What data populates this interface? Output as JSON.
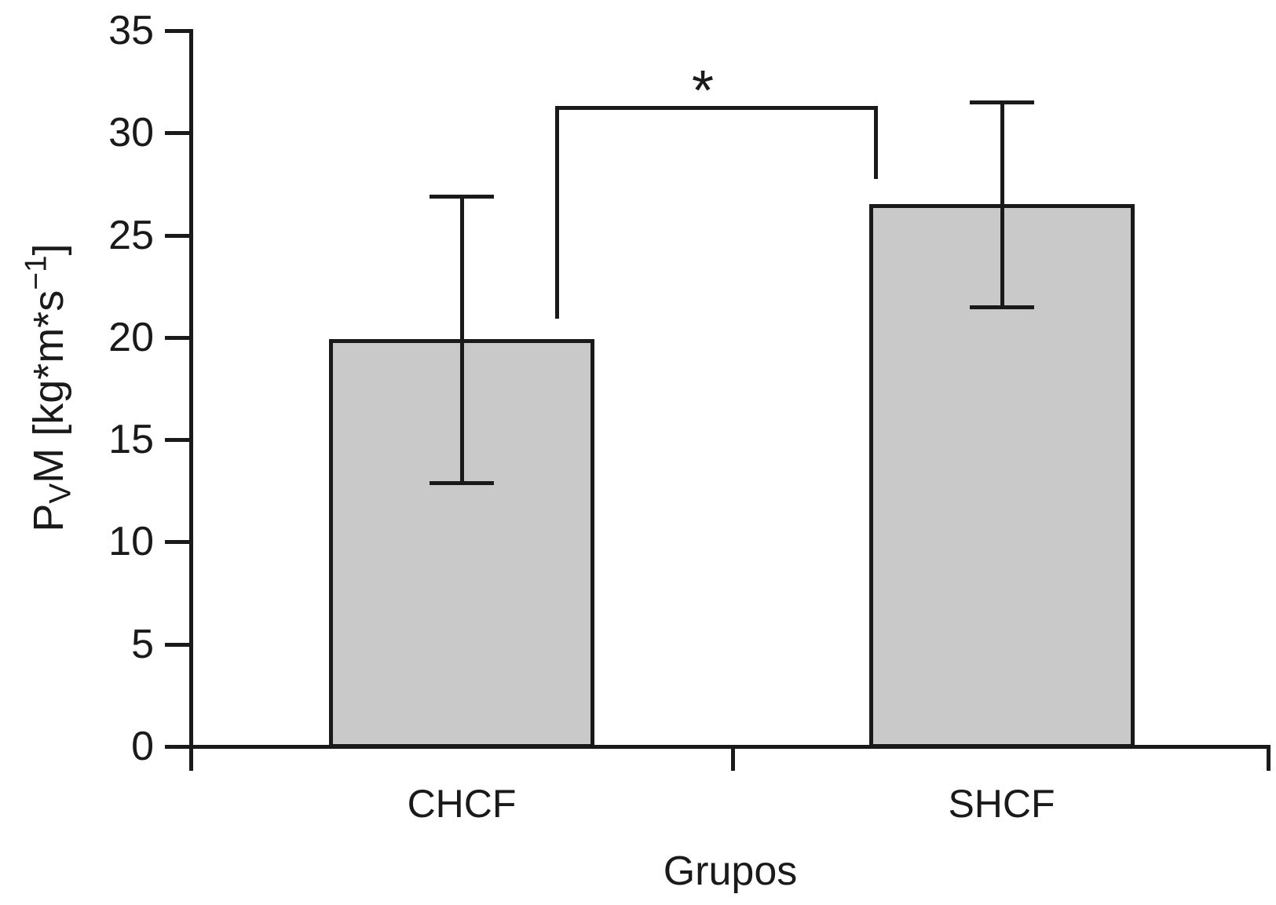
{
  "chart_data": {
    "type": "bar",
    "title": "",
    "xlabel": "Grupos",
    "ylabel": {
      "pre": "P",
      "sub": "V",
      "mid": "M [kg*m*s",
      "sup": "−1",
      "post": "]",
      "plain": "PVM [kg*m*s−1]"
    },
    "categories": [
      "CHCF",
      "SHCF"
    ],
    "values": [
      19.9,
      26.5
    ],
    "errors": [
      7.0,
      5.0
    ],
    "error_tops": [
      26.9,
      31.5
    ],
    "error_bottoms": [
      12.9,
      21.5
    ],
    "ylim": [
      0,
      35
    ],
    "yticks": [
      0,
      5,
      10,
      15,
      20,
      25,
      30,
      35
    ],
    "grid": false,
    "legend": null,
    "significance": {
      "label": "*",
      "between": [
        "CHCF",
        "SHCF"
      ],
      "bar_value": 31.25,
      "left_end_value": 20.9,
      "right_end_value": 27.75
    }
  },
  "colors": {
    "background": "#ffffff",
    "bar_fill": "#c9c9c9",
    "line": "#1a1a1a",
    "text": "#1a1a1a"
  }
}
